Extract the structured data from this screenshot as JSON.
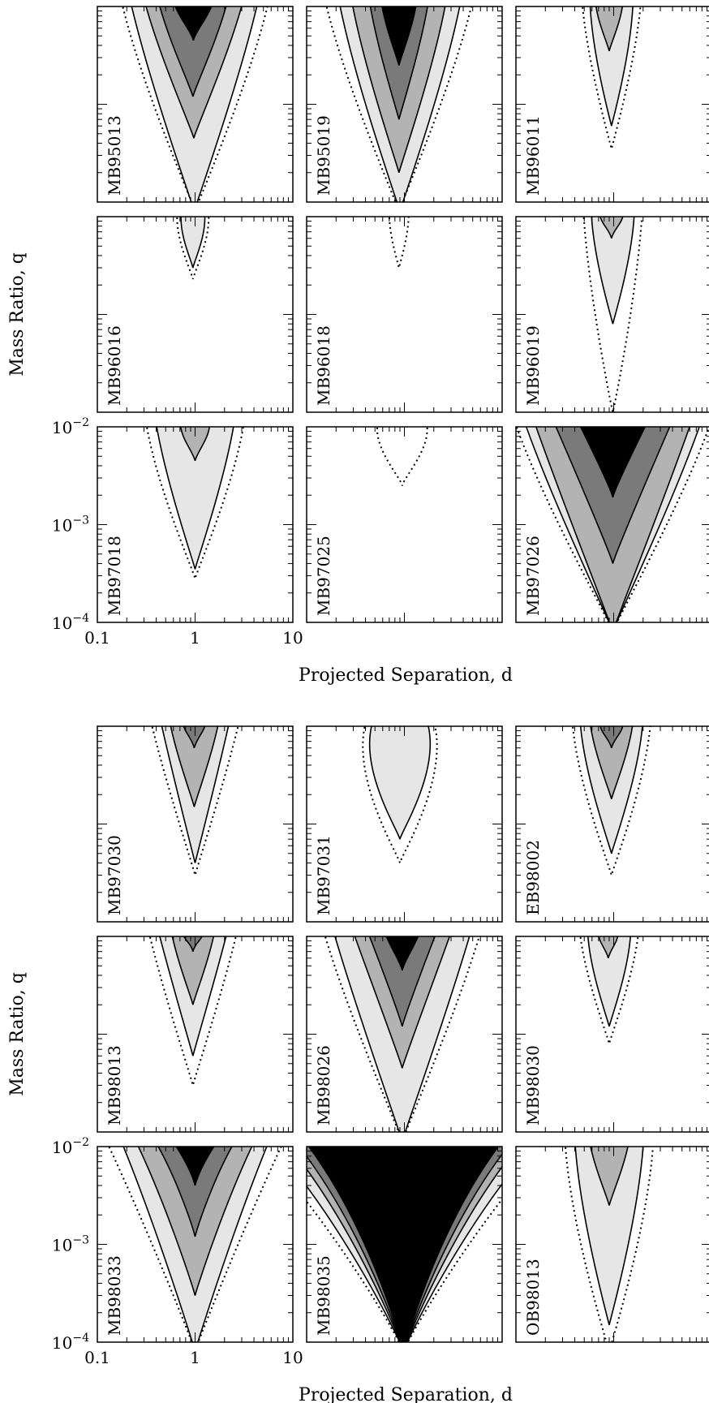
{
  "chart_data": [
    {
      "type": "contour",
      "xlabel": "Projected Separation, d",
      "ylabel": "Mass Ratio, q",
      "x_scale": "log",
      "y_scale": "log",
      "xlim": [
        0.1,
        10
      ],
      "ylim": [
        0.0001,
        0.01
      ],
      "x_ticks": [
        {
          "v": 0.1,
          "label": "0.1"
        },
        {
          "v": 1,
          "label": "1"
        },
        {
          "v": 10,
          "label": "10"
        }
      ],
      "y_ticks": [
        {
          "v": 0.01,
          "label": "10",
          "exp": "−2"
        },
        {
          "v": 0.001,
          "label": "10",
          "exp": "−3"
        },
        {
          "v": 0.0001,
          "label": "10",
          "exp": "−4"
        }
      ],
      "panels": [
        {
          "label": "MB95013",
          "levels": [
            {
              "q": 8e-05,
              "d": 1.0,
              "w": 0.55,
              "bulge": 0.75
            },
            {
              "q": 8e-05,
              "d": 0.98,
              "w": 0.45,
              "bulge": 0.65
            },
            {
              "q": 0.00045,
              "d": 0.97,
              "w": 0.35,
              "bulge": 0.5
            },
            {
              "q": 0.0012,
              "d": 0.95,
              "w": 0.25,
              "bulge": 0.35
            },
            {
              "q": 0.0045,
              "d": 0.96,
              "w": 0.15,
              "bulge": 0.2
            }
          ]
        },
        {
          "label": "MB95019",
          "levels": [
            {
              "q": 8e-05,
              "d": 0.88,
              "w": 0.55,
              "bulge": 0.75
            },
            {
              "q": 8e-05,
              "d": 0.9,
              "w": 0.45,
              "bulge": 0.62
            },
            {
              "q": 0.0002,
              "d": 0.88,
              "w": 0.35,
              "bulge": 0.48
            },
            {
              "q": 0.0007,
              "d": 0.88,
              "w": 0.22,
              "bulge": 0.3
            },
            {
              "q": 0.0025,
              "d": 0.88,
              "w": 0.14,
              "bulge": 0.18
            }
          ]
        },
        {
          "label": "MB96011",
          "levels": [
            {
              "q": 0.00035,
              "d": 0.95,
              "w": 0.25,
              "bulge": 0.3
            },
            {
              "q": 0.0006,
              "d": 0.95,
              "w": 0.2,
              "bulge": 0.22
            },
            {
              "q": 0.0035,
              "d": 0.9,
              "w": 0.12,
              "bulge": 0.14
            }
          ]
        },
        {
          "label": "MB96016",
          "levels": [
            {
              "q": 0.0023,
              "d": 0.95,
              "w": 0.18,
              "bulge": 0.16
            },
            {
              "q": 0.003,
              "d": 0.95,
              "w": 0.14,
              "bulge": 0.12
            }
          ]
        },
        {
          "label": "MB96018",
          "levels": [
            {
              "q": 0.003,
              "d": 0.88,
              "w": 0.1,
              "bulge": 0.1
            }
          ]
        },
        {
          "label": "MB96019",
          "levels": [
            {
              "q": 0.0001,
              "d": 0.98,
              "w": 0.25,
              "bulge": 0.3
            },
            {
              "q": 0.0008,
              "d": 0.98,
              "w": 0.2,
              "bulge": 0.22
            },
            {
              "q": 0.006,
              "d": 0.95,
              "w": 0.12,
              "bulge": 0.12
            }
          ]
        },
        {
          "label": "MB97018",
          "levels": [
            {
              "q": 0.00028,
              "d": 1.0,
              "w": 0.4,
              "bulge": 0.5
            },
            {
              "q": 0.00035,
              "d": 1.0,
              "w": 0.3,
              "bulge": 0.4
            },
            {
              "q": 0.0045,
              "d": 1.0,
              "w": 0.15,
              "bulge": 0.15
            }
          ]
        },
        {
          "label": "MB97025",
          "levels": [
            {
              "q": 0.0025,
              "d": 0.95,
              "w": 0.3,
              "bulge": 0.25
            }
          ]
        },
        {
          "label": "MB97026",
          "levels": [
            {
              "q": 8e-05,
              "d": 0.98,
              "w": 0.7,
              "bulge": 1.0
            },
            {
              "q": 8e-05,
              "d": 0.98,
              "w": 0.6,
              "bulge": 0.9
            },
            {
              "q": 8e-05,
              "d": 0.98,
              "w": 0.5,
              "bulge": 0.8
            },
            {
              "q": 0.0004,
              "d": 0.98,
              "w": 0.35,
              "bulge": 0.6
            },
            {
              "q": 0.0019,
              "d": 0.98,
              "w": 0.2,
              "bulge": 0.35
            }
          ]
        },
        {
          "label": "MB97030",
          "levels": [
            {
              "q": 0.0003,
              "d": 1.0,
              "w": 0.3,
              "bulge": 0.45
            },
            {
              "q": 0.0004,
              "d": 1.0,
              "w": 0.22,
              "bulge": 0.35
            },
            {
              "q": 0.0015,
              "d": 0.98,
              "w": 0.18,
              "bulge": 0.25
            },
            {
              "q": 0.006,
              "d": 0.98,
              "w": 0.1,
              "bulge": 0.12
            }
          ]
        },
        {
          "label": "MB97031",
          "levels": [
            {
              "q": 0.0004,
              "d": 0.9,
              "w": 0.5,
              "bulge": 0.35
            },
            {
              "q": 0.0007,
              "d": 0.9,
              "w": 0.42,
              "bulge": 0.28
            }
          ]
        },
        {
          "label": "EB98002",
          "levels": [
            {
              "q": 0.0003,
              "d": 0.95,
              "w": 0.35,
              "bulge": 0.4
            },
            {
              "q": 0.0005,
              "d": 0.95,
              "w": 0.28,
              "bulge": 0.32
            },
            {
              "q": 0.0018,
              "d": 0.95,
              "w": 0.18,
              "bulge": 0.22
            },
            {
              "q": 0.006,
              "d": 0.95,
              "w": 0.12,
              "bulge": 0.12
            }
          ]
        },
        {
          "label": "MB98013",
          "levels": [
            {
              "q": 0.0003,
              "d": 0.95,
              "w": 0.3,
              "bulge": 0.45
            },
            {
              "q": 0.0006,
              "d": 0.95,
              "w": 0.22,
              "bulge": 0.35
            },
            {
              "q": 0.002,
              "d": 0.95,
              "w": 0.16,
              "bulge": 0.22
            },
            {
              "q": 0.007,
              "d": 0.95,
              "w": 0.1,
              "bulge": 0.1
            }
          ]
        },
        {
          "label": "MB98026",
          "levels": [
            {
              "q": 8e-05,
              "d": 0.95,
              "w": 0.55,
              "bulge": 0.8
            },
            {
              "q": 8e-05,
              "d": 0.95,
              "w": 0.45,
              "bulge": 0.7
            },
            {
              "q": 0.00045,
              "d": 0.95,
              "w": 0.3,
              "bulge": 0.5
            },
            {
              "q": 0.0012,
              "d": 0.95,
              "w": 0.2,
              "bulge": 0.35
            },
            {
              "q": 0.0045,
              "d": 0.95,
              "w": 0.12,
              "bulge": 0.18
            }
          ]
        },
        {
          "label": "MB98030",
          "levels": [
            {
              "q": 0.0008,
              "d": 0.9,
              "w": 0.25,
              "bulge": 0.3
            },
            {
              "q": 0.0012,
              "d": 0.9,
              "w": 0.2,
              "bulge": 0.22
            },
            {
              "q": 0.006,
              "d": 0.88,
              "w": 0.1,
              "bulge": 0.1
            }
          ]
        },
        {
          "label": "MB98033",
          "levels": [
            {
              "q": 8e-05,
              "d": 1.0,
              "w": 0.5,
              "bulge": 0.9
            },
            {
              "q": 8e-05,
              "d": 1.0,
              "w": 0.4,
              "bulge": 0.75
            },
            {
              "q": 0.0003,
              "d": 1.0,
              "w": 0.3,
              "bulge": 0.6
            },
            {
              "q": 0.0012,
              "d": 1.0,
              "w": 0.18,
              "bulge": 0.4
            },
            {
              "q": 0.004,
              "d": 1.0,
              "w": 0.1,
              "bulge": 0.22
            }
          ]
        },
        {
          "label": "MB98035",
          "levels": [
            {
              "q": 8e-05,
              "d": 0.98,
              "w": 0.7,
              "bulge": 1.5
            },
            {
              "q": 8e-05,
              "d": 0.98,
              "w": 0.6,
              "bulge": 1.35
            },
            {
              "q": 8e-05,
              "d": 0.98,
              "w": 0.5,
              "bulge": 1.2
            },
            {
              "q": 8e-05,
              "d": 0.98,
              "w": 0.42,
              "bulge": 1.1
            },
            {
              "q": 8e-05,
              "d": 0.98,
              "w": 0.35,
              "bulge": 1.0
            }
          ]
        },
        {
          "label": "OB98013",
          "levels": [
            {
              "q": 8e-05,
              "d": 0.9,
              "w": 0.4,
              "bulge": 0.45
            },
            {
              "q": 0.00015,
              "d": 0.9,
              "w": 0.3,
              "bulge": 0.35
            },
            {
              "q": 0.0025,
              "d": 0.9,
              "w": 0.15,
              "bulge": 0.2
            }
          ]
        }
      ]
    }
  ],
  "fill_colors": [
    "#ffffff",
    "#e6e6e6",
    "#b3b3b3",
    "#7a7a7a",
    "#000000"
  ]
}
